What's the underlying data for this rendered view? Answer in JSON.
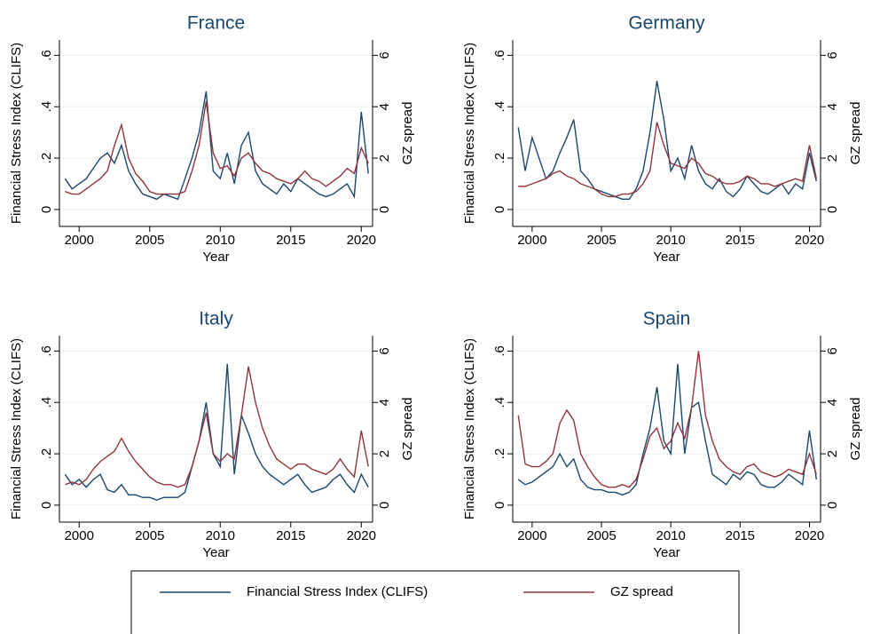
{
  "chart_data": [
    {
      "type": "line",
      "title": "France",
      "xlabel": "Year",
      "ylabel": "Financial Stress Index (CLIFS)",
      "y2label": "GZ spread",
      "grid": true,
      "legend": "bottom",
      "xlim": [
        1998.6,
        2020.8
      ],
      "xticks": [
        2000,
        2005,
        2010,
        2015,
        2020
      ],
      "ylim": [
        -0.066,
        0.66
      ],
      "yticks": [
        0,
        {
          "value": 0.2,
          "label": ".2"
        },
        {
          "value": 0.4,
          "label": ".4"
        },
        {
          "value": 0.6,
          "label": ".6"
        }
      ],
      "y2lim": [
        -0.66,
        6.6
      ],
      "y2ticks": [
        0,
        2,
        4,
        6
      ],
      "x": [
        1999,
        1999.5,
        2000,
        2000.5,
        2001,
        2001.5,
        2002,
        2002.5,
        2003,
        2003.5,
        2004,
        2004.5,
        2005,
        2005.5,
        2006,
        2006.5,
        2007,
        2007.5,
        2008,
        2008.5,
        2009,
        2009.5,
        2010,
        2010.5,
        2011,
        2011.5,
        2012,
        2012.5,
        2013,
        2013.5,
        2014,
        2014.5,
        2015,
        2015.5,
        2016,
        2016.5,
        2017,
        2017.5,
        2018,
        2018.5,
        2019,
        2019.5,
        2020,
        2020.5
      ],
      "series": [
        {
          "name": "Financial Stress Index (CLIFS)",
          "color": "#1a476f",
          "values": [
            0.12,
            0.08,
            0.1,
            0.12,
            0.16,
            0.2,
            0.22,
            0.18,
            0.25,
            0.15,
            0.1,
            0.06,
            0.05,
            0.04,
            0.06,
            0.05,
            0.04,
            0.12,
            0.2,
            0.3,
            0.46,
            0.15,
            0.12,
            0.22,
            0.1,
            0.25,
            0.3,
            0.15,
            0.1,
            0.08,
            0.06,
            0.1,
            0.07,
            0.12,
            0.1,
            0.08,
            0.06,
            0.05,
            0.06,
            0.08,
            0.1,
            0.05,
            0.38,
            0.14
          ]
        },
        {
          "name": "GZ spread",
          "color": "#90353b",
          "axis": "y2",
          "values": [
            0.7,
            0.6,
            0.6,
            0.8,
            1.0,
            1.2,
            1.5,
            2.5,
            3.3,
            2.0,
            1.4,
            1.1,
            0.7,
            0.6,
            0.6,
            0.6,
            0.6,
            0.7,
            1.5,
            2.5,
            4.2,
            2.2,
            1.6,
            1.7,
            1.3,
            2.0,
            2.2,
            1.8,
            1.5,
            1.4,
            1.2,
            1.1,
            1.0,
            1.2,
            1.5,
            1.2,
            1.1,
            0.9,
            1.1,
            1.3,
            1.6,
            1.4,
            2.4,
            1.8
          ]
        }
      ]
    },
    {
      "type": "line",
      "title": "Germany",
      "xlabel": "Year",
      "ylabel": "Financial Stress Index (CLIFS)",
      "y2label": "GZ spread",
      "grid": true,
      "xlim": [
        1998.6,
        2020.8
      ],
      "xticks": [
        2000,
        2005,
        2010,
        2015,
        2020
      ],
      "ylim": [
        -0.066,
        0.66
      ],
      "yticks": [
        0,
        {
          "value": 0.2,
          "label": ".2"
        },
        {
          "value": 0.4,
          "label": ".4"
        },
        {
          "value": 0.6,
          "label": ".6"
        }
      ],
      "y2lim": [
        -0.66,
        6.6
      ],
      "y2ticks": [
        0,
        2,
        4,
        6
      ],
      "x": [
        1999,
        1999.5,
        2000,
        2000.5,
        2001,
        2001.5,
        2002,
        2002.5,
        2003,
        2003.5,
        2004,
        2004.5,
        2005,
        2005.5,
        2006,
        2006.5,
        2007,
        2007.5,
        2008,
        2008.5,
        2009,
        2009.5,
        2010,
        2010.5,
        2011,
        2011.5,
        2012,
        2012.5,
        2013,
        2013.5,
        2014,
        2014.5,
        2015,
        2015.5,
        2016,
        2016.5,
        2017,
        2017.5,
        2018,
        2018.5,
        2019,
        2019.5,
        2020,
        2020.5
      ],
      "series": [
        {
          "color": "#1a476f",
          "values": [
            0.32,
            0.15,
            0.28,
            0.2,
            0.12,
            0.15,
            0.22,
            0.28,
            0.35,
            0.15,
            0.12,
            0.08,
            0.07,
            0.06,
            0.05,
            0.04,
            0.04,
            0.08,
            0.15,
            0.3,
            0.5,
            0.35,
            0.15,
            0.2,
            0.12,
            0.25,
            0.15,
            0.1,
            0.08,
            0.12,
            0.07,
            0.05,
            0.08,
            0.13,
            0.1,
            0.07,
            0.06,
            0.08,
            0.1,
            0.06,
            0.1,
            0.08,
            0.22,
            0.11
          ]
        },
        {
          "color": "#90353b",
          "axis": "y2",
          "values": [
            0.9,
            0.9,
            1.0,
            1.1,
            1.2,
            1.4,
            1.5,
            1.3,
            1.2,
            1.0,
            0.9,
            0.8,
            0.6,
            0.5,
            0.5,
            0.6,
            0.6,
            0.7,
            1.0,
            1.5,
            3.4,
            2.5,
            1.8,
            1.7,
            1.6,
            2.0,
            1.8,
            1.4,
            1.3,
            1.1,
            1.0,
            1.0,
            1.1,
            1.3,
            1.2,
            1.0,
            1.0,
            0.9,
            1.0,
            1.1,
            1.2,
            1.1,
            2.5,
            1.2
          ]
        }
      ]
    },
    {
      "type": "line",
      "title": "Italy",
      "xlabel": "Year",
      "ylabel": "Financial Stress Index (CLIFS)",
      "y2label": "GZ spread",
      "grid": true,
      "xlim": [
        1998.6,
        2020.8
      ],
      "xticks": [
        2000,
        2005,
        2010,
        2015,
        2020
      ],
      "ylim": [
        -0.066,
        0.66
      ],
      "yticks": [
        0,
        {
          "value": 0.2,
          "label": ".2"
        },
        {
          "value": 0.4,
          "label": ".4"
        },
        {
          "value": 0.6,
          "label": ".6"
        }
      ],
      "y2lim": [
        -0.66,
        6.6
      ],
      "y2ticks": [
        0,
        2,
        4,
        6
      ],
      "x": [
        1999,
        1999.5,
        2000,
        2000.5,
        2001,
        2001.5,
        2002,
        2002.5,
        2003,
        2003.5,
        2004,
        2004.5,
        2005,
        2005.5,
        2006,
        2006.5,
        2007,
        2007.5,
        2008,
        2008.5,
        2009,
        2009.5,
        2010,
        2010.5,
        2011,
        2011.5,
        2012,
        2012.5,
        2013,
        2013.5,
        2014,
        2014.5,
        2015,
        2015.5,
        2016,
        2016.5,
        2017,
        2017.5,
        2018,
        2018.5,
        2019,
        2019.5,
        2020,
        2020.5
      ],
      "series": [
        {
          "color": "#1a476f",
          "values": [
            0.12,
            0.08,
            0.1,
            0.07,
            0.1,
            0.12,
            0.06,
            0.05,
            0.08,
            0.04,
            0.04,
            0.03,
            0.03,
            0.02,
            0.03,
            0.03,
            0.03,
            0.05,
            0.15,
            0.25,
            0.4,
            0.2,
            0.15,
            0.55,
            0.12,
            0.35,
            0.28,
            0.2,
            0.15,
            0.12,
            0.1,
            0.08,
            0.1,
            0.12,
            0.08,
            0.05,
            0.06,
            0.07,
            0.1,
            0.12,
            0.08,
            0.05,
            0.12,
            0.07
          ]
        },
        {
          "color": "#90353b",
          "axis": "y2",
          "values": [
            0.8,
            0.9,
            0.8,
            1.0,
            1.4,
            1.7,
            1.9,
            2.1,
            2.6,
            2.1,
            1.7,
            1.4,
            1.1,
            0.9,
            0.8,
            0.8,
            0.7,
            0.8,
            1.5,
            2.5,
            3.6,
            2.0,
            1.7,
            2.0,
            1.8,
            3.5,
            5.4,
            4.0,
            3.0,
            2.3,
            1.8,
            1.6,
            1.4,
            1.6,
            1.6,
            1.4,
            1.3,
            1.2,
            1.4,
            1.8,
            1.4,
            1.1,
            2.9,
            1.5
          ]
        }
      ]
    },
    {
      "type": "line",
      "title": "Spain",
      "xlabel": "Year",
      "ylabel": "Financial Stress Index (CLIFS)",
      "y2label": "GZ spread",
      "grid": true,
      "xlim": [
        1998.6,
        2020.8
      ],
      "xticks": [
        2000,
        2005,
        2010,
        2015,
        2020
      ],
      "ylim": [
        -0.066,
        0.66
      ],
      "yticks": [
        0,
        {
          "value": 0.2,
          "label": ".2"
        },
        {
          "value": 0.4,
          "label": ".4"
        },
        {
          "value": 0.6,
          "label": ".6"
        }
      ],
      "y2lim": [
        -0.66,
        6.6
      ],
      "y2ticks": [
        0,
        2,
        4,
        6
      ],
      "x": [
        1999,
        1999.5,
        2000,
        2000.5,
        2001,
        2001.5,
        2002,
        2002.5,
        2003,
        2003.5,
        2004,
        2004.5,
        2005,
        2005.5,
        2006,
        2006.5,
        2007,
        2007.5,
        2008,
        2008.5,
        2009,
        2009.5,
        2010,
        2010.5,
        2011,
        2011.5,
        2012,
        2012.5,
        2013,
        2013.5,
        2014,
        2014.5,
        2015,
        2015.5,
        2016,
        2016.5,
        2017,
        2017.5,
        2018,
        2018.5,
        2019,
        2019.5,
        2020,
        2020.5
      ],
      "series": [
        {
          "color": "#1a476f",
          "values": [
            0.1,
            0.08,
            0.09,
            0.11,
            0.13,
            0.15,
            0.2,
            0.15,
            0.18,
            0.1,
            0.07,
            0.06,
            0.06,
            0.05,
            0.05,
            0.04,
            0.05,
            0.08,
            0.2,
            0.3,
            0.46,
            0.25,
            0.2,
            0.55,
            0.2,
            0.38,
            0.4,
            0.25,
            0.12,
            0.1,
            0.08,
            0.12,
            0.1,
            0.13,
            0.12,
            0.08,
            0.07,
            0.07,
            0.09,
            0.12,
            0.1,
            0.08,
            0.29,
            0.1
          ]
        },
        {
          "color": "#90353b",
          "axis": "y2",
          "values": [
            3.5,
            1.6,
            1.5,
            1.5,
            1.7,
            2.0,
            3.2,
            3.7,
            3.3,
            2.0,
            1.5,
            1.1,
            0.8,
            0.7,
            0.7,
            0.8,
            0.7,
            1.0,
            1.8,
            2.7,
            3.0,
            2.2,
            2.5,
            3.2,
            2.6,
            3.8,
            6.0,
            3.5,
            2.5,
            1.8,
            1.5,
            1.3,
            1.2,
            1.5,
            1.6,
            1.3,
            1.2,
            1.1,
            1.2,
            1.4,
            1.3,
            1.2,
            2.0,
            1.2
          ]
        }
      ]
    }
  ]
}
